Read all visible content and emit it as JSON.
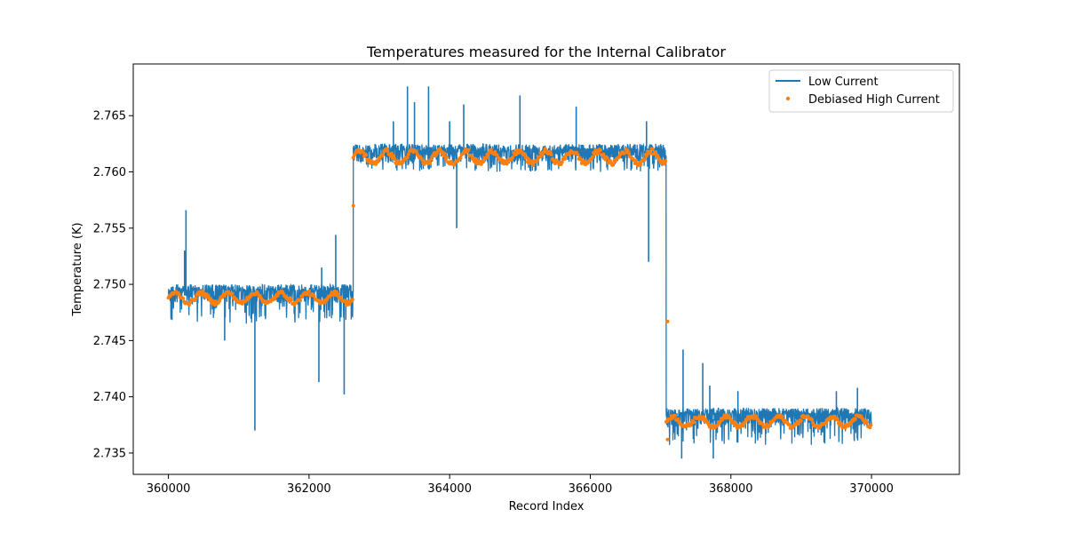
{
  "chart_data": {
    "type": "line",
    "title": "Temperatures measured for the Internal Calibrator",
    "xlabel": "Record Index",
    "ylabel": "Temperature (K)",
    "xlim": [
      359500,
      371250
    ],
    "ylim": [
      2.7331,
      2.7696
    ],
    "x_ticks": [
      360000,
      362000,
      364000,
      366000,
      368000,
      370000
    ],
    "x_tick_labels": [
      "360000",
      "362000",
      "364000",
      "366000",
      "368000",
      "370000"
    ],
    "y_ticks": [
      2.735,
      2.74,
      2.745,
      2.75,
      2.755,
      2.76,
      2.765
    ],
    "y_tick_labels": [
      "2.735",
      "2.740",
      "2.745",
      "2.750",
      "2.755",
      "2.760",
      "2.765"
    ],
    "grid": false,
    "legend_position": "top-right",
    "colors": {
      "low_current": "#1f77b4",
      "high_current": "#ff7f0e"
    },
    "series": [
      {
        "name": "Low Current",
        "style": "line",
        "segments": [
          {
            "x_start": 360000,
            "x_end": 362630,
            "level": 2.749,
            "band_low": 2.7465,
            "band_high": 2.75
          },
          {
            "x_start": 362630,
            "x_end": 367080,
            "level": 2.7615,
            "band_low": 2.76,
            "band_high": 2.7625
          },
          {
            "x_start": 367080,
            "x_end": 370000,
            "level": 2.738,
            "band_low": 2.7357,
            "band_high": 2.739
          }
        ],
        "spikes": [
          {
            "x": 360250,
            "y": 2.7566
          },
          {
            "x": 360230,
            "y": 2.753
          },
          {
            "x": 360800,
            "y": 2.745
          },
          {
            "x": 361230,
            "y": 2.737
          },
          {
            "x": 362140,
            "y": 2.7413
          },
          {
            "x": 362380,
            "y": 2.7544
          },
          {
            "x": 362500,
            "y": 2.7402
          },
          {
            "x": 362180,
            "y": 2.7515
          },
          {
            "x": 363400,
            "y": 2.7676
          },
          {
            "x": 363500,
            "y": 2.7662
          },
          {
            "x": 363700,
            "y": 2.7676
          },
          {
            "x": 364000,
            "y": 2.7645
          },
          {
            "x": 364200,
            "y": 2.766
          },
          {
            "x": 364100,
            "y": 2.755
          },
          {
            "x": 365000,
            "y": 2.7668
          },
          {
            "x": 365800,
            "y": 2.7658
          },
          {
            "x": 366800,
            "y": 2.7645
          },
          {
            "x": 366830,
            "y": 2.752
          },
          {
            "x": 363200,
            "y": 2.7645
          },
          {
            "x": 367320,
            "y": 2.7442
          },
          {
            "x": 367600,
            "y": 2.743
          },
          {
            "x": 367700,
            "y": 2.741
          },
          {
            "x": 367300,
            "y": 2.7345
          },
          {
            "x": 367750,
            "y": 2.7345
          },
          {
            "x": 368100,
            "y": 2.7405
          },
          {
            "x": 369500,
            "y": 2.7405
          },
          {
            "x": 369800,
            "y": 2.7408
          }
        ]
      },
      {
        "name": "Debiased High Current",
        "style": "scatter",
        "segments": [
          {
            "x_start": 360000,
            "x_end": 362630,
            "level": 2.7488,
            "band_low": 2.7482,
            "band_high": 2.7492
          },
          {
            "x_start": 362630,
            "x_end": 367080,
            "level": 2.7613,
            "band_low": 2.7606,
            "band_high": 2.7618
          },
          {
            "x_start": 367080,
            "x_end": 370000,
            "level": 2.7378,
            "band_low": 2.7372,
            "band_high": 2.7382
          }
        ],
        "outliers": [
          {
            "x": 362630,
            "y": 2.757
          },
          {
            "x": 367100,
            "y": 2.7467
          },
          {
            "x": 367100,
            "y": 2.7362
          }
        ]
      }
    ]
  }
}
